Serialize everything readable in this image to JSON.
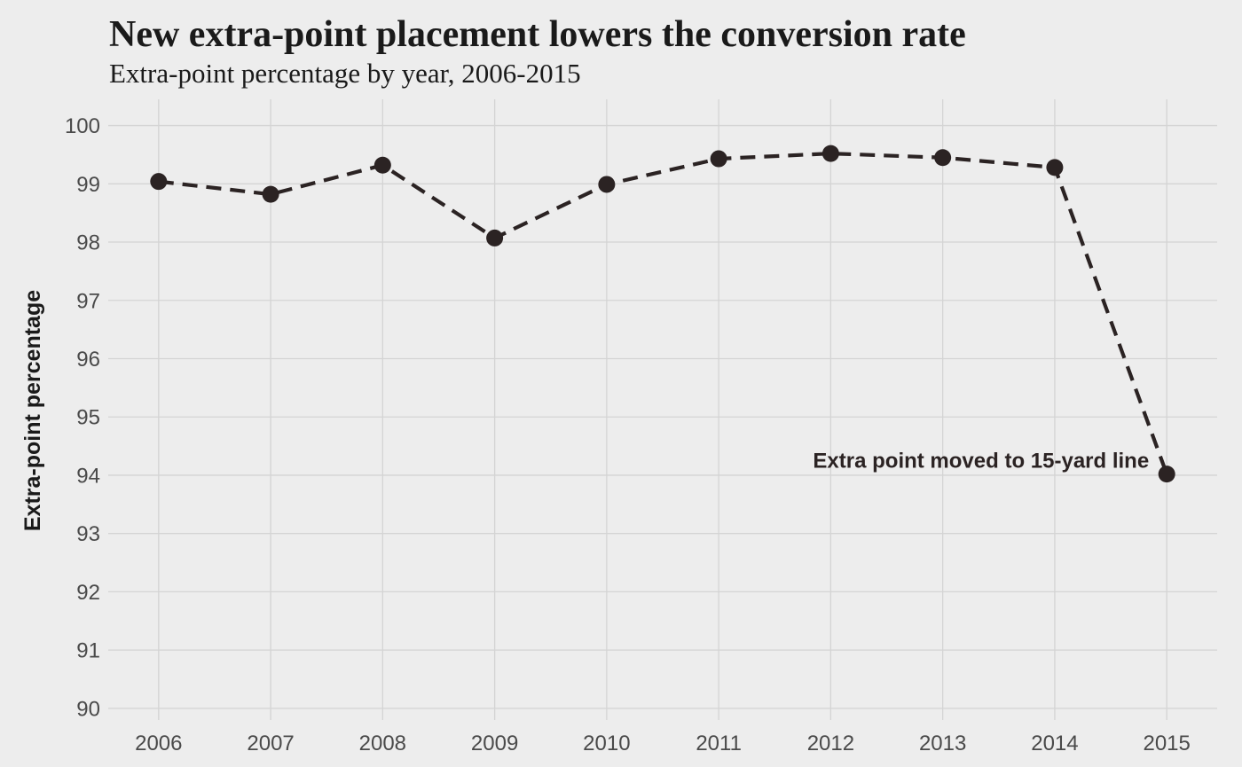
{
  "chart_data": {
    "type": "line",
    "title": "New extra-point placement lowers the conversion rate",
    "subtitle": "Extra-point percentage by year, 2006-2015",
    "xlabel": "",
    "ylabel": "Extra-point percentage",
    "x": [
      2006,
      2007,
      2008,
      2009,
      2010,
      2011,
      2012,
      2013,
      2014,
      2015
    ],
    "series": [
      {
        "values": [
          99.04,
          98.82,
          99.32,
          98.07,
          98.99,
          99.43,
          99.52,
          99.45,
          99.28,
          94.02
        ]
      }
    ],
    "xlim": [
      2005.55,
      2015.45
    ],
    "ylim": [
      89.8,
      100.45
    ],
    "yticks": [
      90,
      91,
      92,
      93,
      94,
      95,
      96,
      97,
      98,
      99,
      100
    ],
    "xticks": [
      2006,
      2007,
      2008,
      2009,
      2010,
      2011,
      2012,
      2013,
      2014,
      2015
    ],
    "grid": true,
    "line_style": "dashed",
    "markers": true,
    "colors": {
      "line": "#2b2323",
      "background": "#ededed",
      "grid": "#d4d4d4"
    },
    "annotations": [
      {
        "text": "Extra point moved to 15-yard line",
        "x": 2015,
        "y": 94.02
      }
    ]
  }
}
